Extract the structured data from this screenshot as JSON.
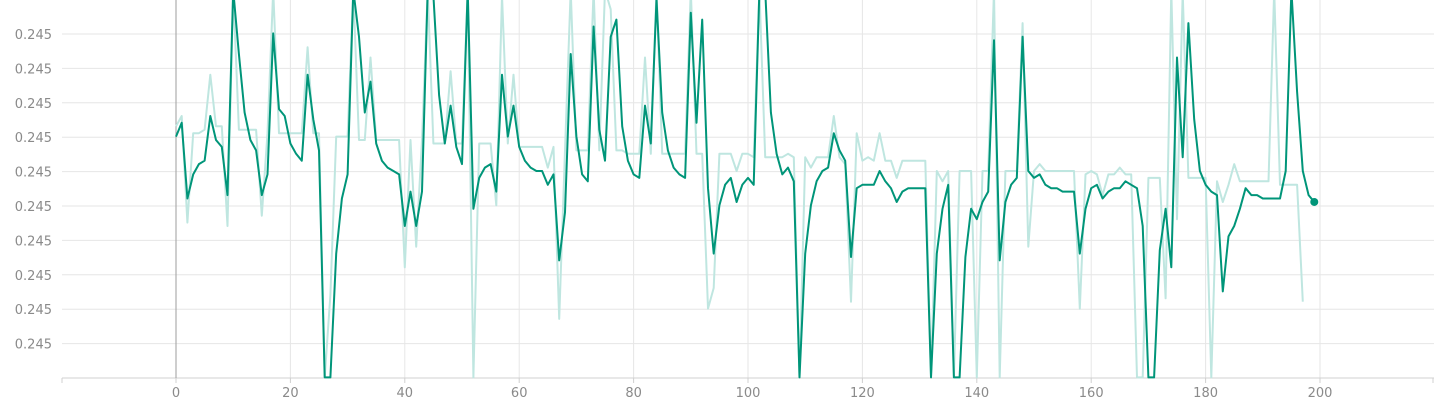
{
  "chart_data": {
    "type": "line",
    "title": "",
    "xlabel": "",
    "ylabel": "",
    "x_ticks": [
      "0",
      "20",
      "40",
      "60",
      "80",
      "100",
      "120",
      "140",
      "160",
      "180",
      "200"
    ],
    "y_ticks": [
      "0.245",
      "0.245",
      "0.245",
      "0.245",
      "0.245",
      "0.245",
      "0.245",
      "0.245",
      "0.245",
      "0.245"
    ],
    "xlim": [
      -20,
      220
    ],
    "ylim_level": [
      -0.75,
      10.9
    ],
    "y_scale_note": "",
    "colors": {
      "smoothed": "#009579",
      "raw": "#bfe6e0",
      "grid": "#e6e6e6",
      "axis": "#9e9e9e",
      "last_point": "#009579"
    },
    "series": [
      {
        "role": "raw",
        "x": [
          0,
          1,
          2,
          3,
          4,
          5,
          6,
          7,
          8,
          9,
          10,
          11,
          12,
          13,
          14,
          15,
          16,
          17,
          18,
          19,
          20,
          21,
          22,
          23,
          24,
          25,
          26,
          27,
          28,
          29,
          30,
          31,
          32,
          33,
          34,
          35,
          36,
          37,
          38,
          39,
          40,
          41,
          42,
          43,
          44,
          45,
          46,
          47,
          48,
          49,
          50,
          51,
          52,
          53,
          54,
          55,
          56,
          57,
          58,
          59,
          60,
          61,
          62,
          63,
          64,
          65,
          66,
          67,
          68,
          69,
          70,
          71,
          72,
          73,
          74,
          75,
          76,
          77,
          78,
          79,
          80,
          81,
          82,
          83,
          84,
          85,
          86,
          87,
          88,
          89,
          90,
          91,
          92,
          93,
          94,
          95,
          96,
          97,
          98,
          99,
          100,
          101,
          102,
          103,
          104,
          105,
          106,
          107,
          108,
          109,
          110,
          111,
          112,
          113,
          114,
          115,
          116,
          117,
          118,
          119,
          120,
          121,
          122,
          123,
          124,
          125,
          126,
          127,
          128,
          129,
          130,
          131,
          132,
          133,
          134,
          135,
          136,
          137,
          138,
          139,
          140,
          141,
          142,
          143,
          144,
          145,
          146,
          147,
          148,
          149,
          150,
          151,
          152,
          153,
          154,
          155,
          156,
          157,
          158,
          159,
          160,
          161,
          162,
          163,
          164,
          165,
          166,
          167,
          168,
          169,
          170,
          171,
          172,
          173,
          174,
          175,
          176,
          177,
          178,
          179,
          180,
          181,
          182,
          183,
          184,
          185,
          186,
          187,
          188,
          189,
          190,
          191,
          192,
          193,
          194,
          195,
          196,
          197,
          198,
          199
        ],
        "level": [
          6.3,
          6.6,
          3.5,
          6.1,
          6.1,
          6.2,
          7.8,
          6.3,
          6.3,
          3.4,
          11.0,
          6.2,
          6.2,
          6.2,
          6.2,
          3.7,
          6.1,
          11.0,
          6.1,
          6.1,
          6.1,
          6.1,
          6.1,
          8.6,
          6.1,
          6.1,
          -1.0,
          1.4,
          6.0,
          6.0,
          6.0,
          11.0,
          5.9,
          5.9,
          8.3,
          5.9,
          5.9,
          5.9,
          5.9,
          5.9,
          2.2,
          5.9,
          2.8,
          5.9,
          11.0,
          5.8,
          5.8,
          5.8,
          7.9,
          5.8,
          5.8,
          11.0,
          -1.0,
          5.8,
          5.8,
          5.8,
          4.0,
          10.1,
          5.8,
          7.8,
          5.7,
          5.7,
          5.7,
          5.7,
          5.7,
          5.1,
          5.7,
          0.7,
          5.6,
          10.9,
          5.6,
          5.6,
          5.6,
          11.0,
          5.6,
          11.0,
          9.7,
          5.6,
          5.6,
          5.5,
          5.5,
          5.5,
          8.3,
          5.5,
          11.0,
          5.5,
          5.5,
          5.5,
          5.5,
          5.5,
          11.0,
          5.5,
          5.5,
          1.0,
          1.6,
          5.5,
          5.5,
          5.5,
          5.0,
          5.5,
          5.5,
          5.4,
          11.0,
          5.4,
          5.4,
          5.4,
          5.4,
          5.5,
          5.4,
          -1.0,
          5.4,
          5.1,
          5.4,
          5.4,
          5.4,
          6.6,
          5.4,
          5.2,
          1.2,
          6.1,
          5.3,
          5.4,
          5.3,
          6.1,
          5.3,
          5.3,
          4.8,
          5.3,
          5.3,
          5.3,
          5.3,
          5.3,
          -1.0,
          5.0,
          4.7,
          5.0,
          -1.0,
          5.0,
          5.0,
          5.0,
          -1.0,
          5.0,
          5.0,
          11.0,
          -1.0,
          5.0,
          5.0,
          5.0,
          9.3,
          2.8,
          5.0,
          5.2,
          5.0,
          5.0,
          5.0,
          5.0,
          5.0,
          5.0,
          1.0,
          4.9,
          5.0,
          4.9,
          4.3,
          4.9,
          4.9,
          5.1,
          4.9,
          4.9,
          -1.0,
          -1.0,
          4.8,
          4.8,
          4.8,
          1.3,
          11.0,
          3.6,
          10.2,
          4.8,
          4.8,
          4.8,
          4.8,
          -1.0,
          4.7,
          4.1,
          4.6,
          5.2,
          4.7,
          4.7,
          4.7,
          4.7,
          4.7,
          4.7,
          11.0,
          4.6,
          4.6,
          4.6,
          4.6,
          1.2
        ],
        "name": ""
      },
      {
        "role": "smoothed",
        "x": [
          0,
          1,
          2,
          3,
          4,
          5,
          6,
          7,
          8,
          9,
          10,
          11,
          12,
          13,
          14,
          15,
          16,
          17,
          18,
          19,
          20,
          21,
          22,
          23,
          24,
          25,
          26,
          27,
          28,
          29,
          30,
          31,
          32,
          33,
          34,
          35,
          36,
          37,
          38,
          39,
          40,
          41,
          42,
          43,
          44,
          45,
          46,
          47,
          48,
          49,
          50,
          51,
          52,
          53,
          54,
          55,
          56,
          57,
          58,
          59,
          60,
          61,
          62,
          63,
          64,
          65,
          66,
          67,
          68,
          69,
          70,
          71,
          72,
          73,
          74,
          75,
          76,
          77,
          78,
          79,
          80,
          81,
          82,
          83,
          84,
          85,
          86,
          87,
          88,
          89,
          90,
          91,
          92,
          93,
          94,
          95,
          96,
          97,
          98,
          99,
          100,
          101,
          102,
          103,
          104,
          105,
          106,
          107,
          108,
          109,
          110,
          111,
          112,
          113,
          114,
          115,
          116,
          117,
          118,
          119,
          120,
          121,
          122,
          123,
          124,
          125,
          126,
          127,
          128,
          129,
          130,
          131,
          132,
          133,
          134,
          135,
          136,
          137,
          138,
          139,
          140,
          141,
          142,
          143,
          144,
          145,
          146,
          147,
          148,
          149,
          150,
          151,
          152,
          153,
          154,
          155,
          156,
          157,
          158,
          159,
          160,
          161,
          162,
          163,
          164,
          165,
          166,
          167,
          168,
          169,
          170,
          171,
          172,
          173,
          174,
          175,
          176,
          177,
          178,
          179,
          180,
          181,
          182,
          183,
          184,
          185,
          186,
          187,
          188,
          189,
          190,
          191,
          192,
          193,
          194,
          195,
          196,
          197,
          198,
          199
        ],
        "level": [
          6.0,
          6.4,
          4.2,
          4.9,
          5.2,
          5.3,
          6.6,
          5.9,
          5.7,
          4.3,
          11.0,
          8.4,
          6.7,
          5.9,
          5.6,
          4.3,
          4.9,
          9.0,
          6.8,
          6.6,
          5.8,
          5.5,
          5.3,
          7.8,
          6.5,
          5.6,
          -1.0,
          -1.0,
          2.6,
          4.2,
          4.9,
          11.0,
          8.9,
          6.7,
          7.6,
          5.8,
          5.3,
          5.1,
          5.0,
          4.9,
          3.4,
          4.4,
          3.4,
          4.4,
          11.0,
          10.1,
          7.2,
          5.8,
          6.9,
          5.7,
          5.2,
          11.0,
          3.9,
          4.8,
          5.1,
          5.2,
          4.4,
          7.8,
          6.0,
          6.9,
          5.7,
          5.3,
          5.1,
          5.0,
          5.0,
          4.6,
          4.9,
          2.4,
          3.8,
          8.4,
          6.0,
          4.9,
          4.7,
          9.2,
          6.2,
          5.3,
          8.9,
          9.4,
          6.3,
          5.3,
          4.9,
          4.8,
          6.9,
          5.8,
          10.0,
          6.7,
          5.6,
          5.1,
          4.9,
          4.8,
          9.6,
          6.4,
          9.4,
          4.5,
          2.6,
          4.0,
          4.6,
          4.8,
          4.1,
          4.6,
          4.8,
          4.6,
          11.0,
          11.0,
          6.7,
          5.5,
          4.9,
          5.1,
          4.7,
          -1.0,
          2.6,
          4.0,
          4.7,
          5.0,
          5.1,
          6.1,
          5.6,
          5.3,
          2.5,
          4.5,
          4.6,
          4.6,
          4.6,
          5.0,
          4.7,
          4.5,
          4.1,
          4.4,
          4.5,
          4.5,
          4.5,
          4.5,
          -1.0,
          2.6,
          3.9,
          4.6,
          -1.0,
          -1.0,
          2.5,
          3.9,
          3.6,
          4.1,
          4.4,
          8.8,
          2.4,
          4.1,
          4.6,
          4.8,
          8.9,
          5.0,
          4.8,
          4.9,
          4.6,
          4.5,
          4.5,
          4.4,
          4.4,
          4.4,
          2.6,
          3.9,
          4.5,
          4.6,
          4.2,
          4.4,
          4.5,
          4.5,
          4.7,
          4.6,
          4.5,
          3.4,
          -1.0,
          -1.0,
          2.7,
          3.9,
          2.2,
          8.3,
          5.4,
          9.3,
          6.5,
          5.0,
          4.6,
          4.4,
          4.3,
          1.5,
          3.1,
          3.4,
          3.9,
          4.5,
          4.3,
          4.3,
          4.2,
          4.2,
          4.2,
          4.2,
          5.0,
          11.0,
          7.3,
          5.0,
          4.3,
          4.1,
          2.6
        ],
        "name": ""
      }
    ]
  }
}
